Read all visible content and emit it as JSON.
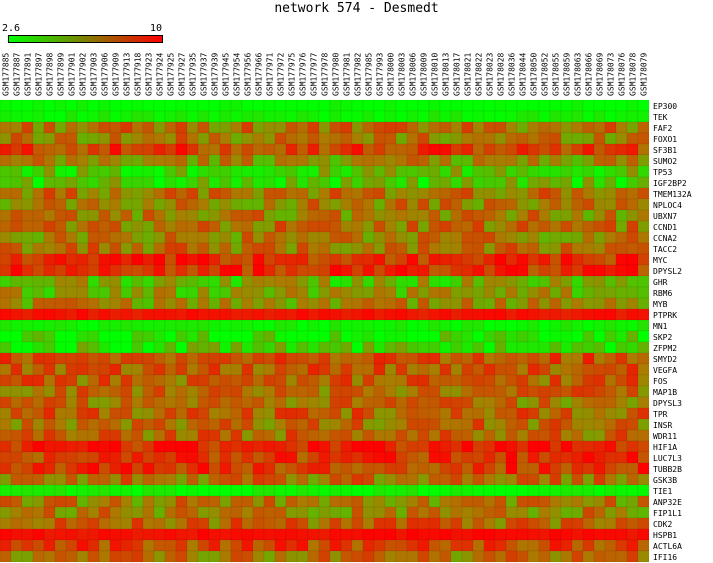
{
  "title": "network 574 - Desmedt",
  "chart_data": {
    "type": "heatmap",
    "title": "network 574 - Desmedt",
    "scale": {
      "min_label": "2.6",
      "max_label": "10",
      "min": 2.6,
      "max": 10,
      "low_color": "#00ff00",
      "high_color": "#ff0000"
    },
    "columns": [
      "GSM177885",
      "GSM177887",
      "GSM177891",
      "GSM177897",
      "GSM177898",
      "GSM177899",
      "GSM177901",
      "GSM177902",
      "GSM177903",
      "GSM177906",
      "GSM177909",
      "GSM177913",
      "GSM177918",
      "GSM177923",
      "GSM177924",
      "GSM177925",
      "GSM177927",
      "GSM177935",
      "GSM177937",
      "GSM177939",
      "GSM177945",
      "GSM177954",
      "GSM177956",
      "GSM177966",
      "GSM177971",
      "GSM177972",
      "GSM177975",
      "GSM177976",
      "GSM177977",
      "GSM177978",
      "GSM177980",
      "GSM177981",
      "GSM177982",
      "GSM177985",
      "GSM177993",
      "GSM178000",
      "GSM178003",
      "GSM178006",
      "GSM178009",
      "GSM178010",
      "GSM178013",
      "GSM178017",
      "GSM178021",
      "GSM178022",
      "GSM178023",
      "GSM178028",
      "GSM178036",
      "GSM178044",
      "GSM178050",
      "GSM178052",
      "GSM178055",
      "GSM178059",
      "GSM178063",
      "GSM178066",
      "GSM178069",
      "GSM178073",
      "GSM178076",
      "GSM178078",
      "GSM178079"
    ],
    "rows": [
      "EP300",
      "TEK",
      "FAF2",
      "FOXO1",
      "SF3B1",
      "SUMO2",
      "TP53",
      "IGF2BP2",
      "TMEM132A",
      "NPLOC4",
      "UBXN7",
      "CCND1",
      "CCNA2",
      "TACC2",
      "MYC",
      "DPYSL2",
      "GHR",
      "RBM6",
      "MYB",
      "PTPRK",
      "MN1",
      "SKP2",
      "ZFPM2",
      "SMYD2",
      "VEGFA",
      "FOS",
      "MAP1B",
      "DPYSL3",
      "TPR",
      "INSR",
      "WDR11",
      "HIF1A",
      "LUC7L3",
      "TUBB2B",
      "GSK3B",
      "TIE1",
      "ANP32E",
      "FIP1L1",
      "CDK2",
      "HSPB1",
      "ACTL6A",
      "IFI16"
    ],
    "row_levels": [
      0.0,
      0.05,
      0.55,
      0.52,
      0.75,
      0.45,
      0.22,
      0.2,
      0.55,
      0.5,
      0.5,
      0.55,
      0.5,
      0.55,
      0.8,
      0.82,
      0.3,
      0.35,
      0.45,
      0.92,
      0.05,
      0.08,
      0.15,
      0.68,
      0.65,
      0.62,
      0.58,
      0.55,
      0.62,
      0.58,
      0.6,
      0.88,
      0.78,
      0.78,
      0.55,
      0.05,
      0.5,
      0.5,
      0.6,
      0.95,
      0.72,
      0.55
    ],
    "note_on_values": "cell values vary per sample around each gene's row level (fraction of the 2.6-10 scale)"
  }
}
